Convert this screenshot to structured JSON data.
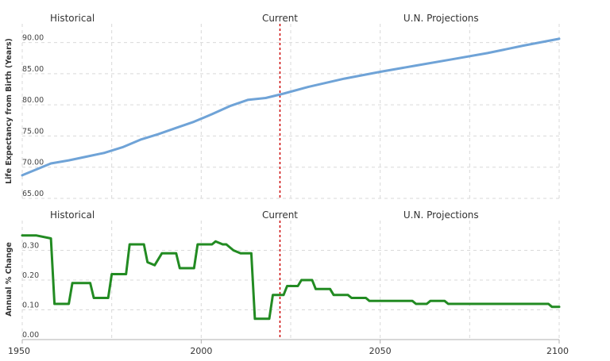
{
  "chart_data": [
    {
      "type": "line",
      "ylabel": "Life Expectancy from Birth (Years)",
      "ylim": [
        65,
        93
      ],
      "xlim": [
        1950,
        2100
      ],
      "y_ticks": [
        "65.00",
        "70.00",
        "75.00",
        "80.00",
        "85.00",
        "90.00"
      ],
      "y_tick_values": [
        65,
        70,
        75,
        80,
        85,
        90
      ],
      "x_ticks": [
        1950,
        2000,
        2050,
        2100
      ],
      "grid": true,
      "section_labels": [
        "Historical",
        "Current",
        "U.N. Projections"
      ],
      "current_year": 2022,
      "series": [
        {
          "color": "#6fa3d7",
          "x": [
            1950,
            1958,
            1963,
            1968,
            1973,
            1978,
            1983,
            1988,
            1993,
            1998,
            2003,
            2008,
            2013,
            2018,
            2023,
            2030,
            2040,
            2050,
            2060,
            2070,
            2080,
            2090,
            2100
          ],
          "y": [
            68.7,
            70.6,
            71.1,
            71.7,
            72.3,
            73.2,
            74.4,
            75.3,
            76.3,
            77.3,
            78.5,
            79.8,
            80.8,
            81.1,
            81.8,
            82.9,
            84.2,
            85.3,
            86.3,
            87.3,
            88.3,
            89.5,
            90.6
          ]
        }
      ]
    },
    {
      "type": "line",
      "ylabel": "Annual % Change",
      "ylim": [
        0,
        0.4
      ],
      "xlim": [
        1950,
        2100
      ],
      "y_ticks": [
        "0.00",
        "0.10",
        "0.20",
        "0.30"
      ],
      "y_tick_values": [
        0,
        0.1,
        0.2,
        0.3
      ],
      "x_ticks": [
        1950,
        2000,
        2050,
        2100
      ],
      "grid": true,
      "section_labels": [
        "Historical",
        "Current",
        "U.N. Projections"
      ],
      "current_year": 2022,
      "series": [
        {
          "color": "#228b22",
          "step": true,
          "x": [
            1950,
            1954,
            1958,
            1959,
            1963,
            1964,
            1969,
            1970,
            1974,
            1975,
            1979,
            1980,
            1984,
            1985,
            1987,
            1989,
            1993,
            1994,
            1998,
            1999,
            2003,
            2004,
            2006,
            2007,
            2009,
            2011,
            2014,
            2015,
            2019,
            2020,
            2023,
            2024,
            2027,
            2028,
            2031,
            2032,
            2036,
            2037,
            2041,
            2042,
            2046,
            2047,
            2059,
            2060,
            2063,
            2064,
            2068,
            2069,
            2097,
            2098,
            2100
          ],
          "y": [
            0.35,
            0.35,
            0.34,
            0.12,
            0.12,
            0.19,
            0.19,
            0.14,
            0.14,
            0.22,
            0.22,
            0.32,
            0.32,
            0.26,
            0.25,
            0.29,
            0.29,
            0.24,
            0.24,
            0.32,
            0.32,
            0.33,
            0.32,
            0.32,
            0.3,
            0.29,
            0.29,
            0.07,
            0.07,
            0.15,
            0.15,
            0.18,
            0.18,
            0.2,
            0.2,
            0.17,
            0.17,
            0.15,
            0.15,
            0.14,
            0.14,
            0.13,
            0.13,
            0.12,
            0.12,
            0.13,
            0.13,
            0.12,
            0.12,
            0.11,
            0.11
          ]
        }
      ]
    }
  ]
}
